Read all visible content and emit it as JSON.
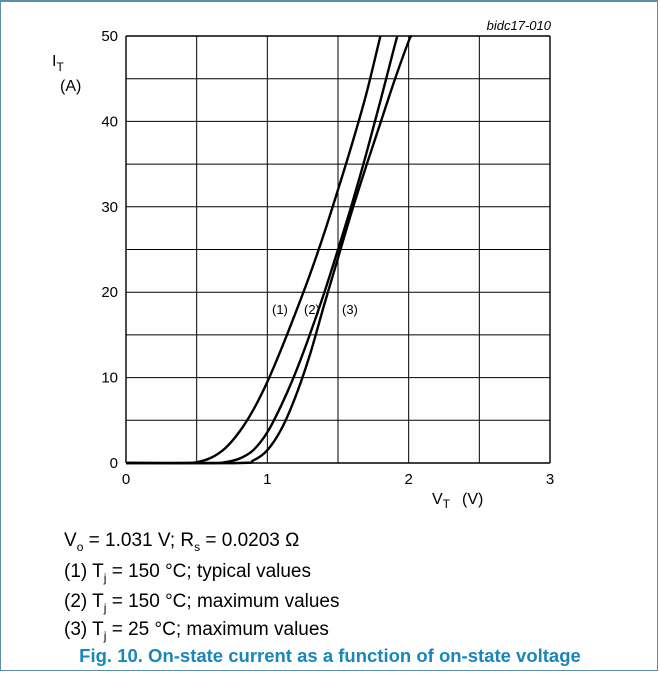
{
  "chart_data": {
    "type": "line",
    "chart_id": "bidc17-010",
    "xlim": [
      0,
      3
    ],
    "ylim": [
      0,
      50
    ],
    "x_ticks": [
      "0",
      "1",
      "2",
      "3"
    ],
    "y_ticks": [
      "0",
      "10",
      "20",
      "30",
      "40",
      "50"
    ],
    "ylabel_main": "I",
    "ylabel_sub": "T",
    "ylabel_unit": "(A)",
    "xlabel_main": "V",
    "xlabel_sub": "T",
    "xlabel_unit": "(V)",
    "grid": true,
    "series": [
      {
        "name": "(1)",
        "x": [
          0.0,
          0.4,
          0.5,
          0.6,
          0.7,
          0.8,
          0.9,
          1.0,
          1.1,
          1.2,
          1.3,
          1.4,
          1.5,
          1.6,
          1.7,
          1.8
        ],
        "y": [
          0,
          0,
          0.1,
          0.6,
          1.7,
          3.6,
          6.2,
          9.5,
          13.4,
          17.6,
          22.0,
          26.8,
          32.0,
          37.4,
          43.2,
          50.0
        ]
      },
      {
        "name": "(2)",
        "x": [
          0.0,
          0.6,
          0.7,
          0.8,
          0.9,
          1.0,
          1.1,
          1.2,
          1.3,
          1.4,
          1.5,
          1.6,
          1.7,
          1.8,
          1.9,
          1.92
        ],
        "y": [
          0,
          0,
          0.1,
          0.5,
          1.5,
          3.6,
          6.8,
          10.6,
          15.0,
          19.8,
          25.0,
          30.4,
          36.2,
          42.4,
          48.8,
          50.0
        ]
      },
      {
        "name": "(3)",
        "x": [
          0.0,
          0.8,
          0.9,
          1.0,
          1.1,
          1.2,
          1.3,
          1.4,
          1.5,
          1.6,
          1.7,
          1.8,
          1.9,
          2.0,
          2.02
        ],
        "y": [
          0,
          0,
          0.3,
          1.5,
          4.0,
          7.8,
          12.6,
          18.4,
          24.0,
          29.6,
          34.8,
          39.8,
          44.8,
          49.4,
          50.0
        ]
      }
    ],
    "curve_labels": [
      "(1)",
      "(2)",
      "(3)"
    ]
  },
  "notes": {
    "params": {
      "vo_main": "V",
      "vo_sub": "o",
      "vo_text": " = 1.031 V; R",
      "rs_sub": "s",
      "rs_text": " = 0.0203 Ω"
    },
    "line1": {
      "num": "(1) T",
      "sub": "j",
      "text": " = 150 °C; typical values"
    },
    "line2": {
      "num": "(2) T",
      "sub": "j",
      "text": " = 150 °C; maximum values"
    },
    "line3": {
      "num": "(3) T",
      "sub": "j",
      "text": " = 25 °C; maximum values"
    }
  },
  "caption": "Fig. 10. On-state current as a function of on-state voltage"
}
